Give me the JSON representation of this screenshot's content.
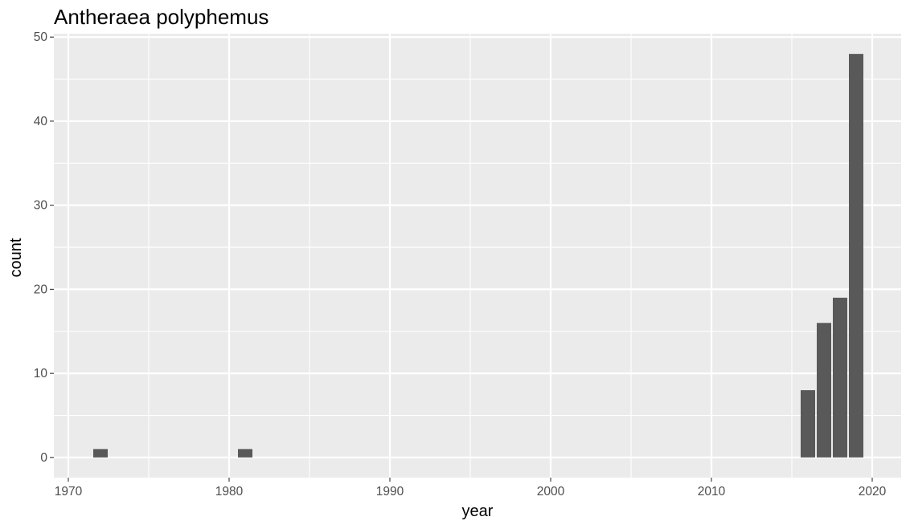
{
  "chart_data": {
    "type": "bar",
    "title": "Antheraea polyphemus",
    "xlabel": "year",
    "ylabel": "count",
    "x": [
      1972,
      1981,
      2016,
      2017,
      2018,
      2019
    ],
    "values": [
      1,
      1,
      8,
      16,
      19,
      48
    ],
    "xlim": [
      1969.1,
      2021.8
    ],
    "ylim": [
      -2.4,
      50.4
    ],
    "x_ticks": [
      1970,
      1980,
      1990,
      2000,
      2010,
      2020
    ],
    "y_ticks": [
      0,
      10,
      20,
      30,
      40,
      50
    ],
    "x_tick_labels": [
      "1970",
      "1980",
      "1990",
      "2000",
      "2010",
      "2020"
    ],
    "y_tick_labels": [
      "0",
      "10",
      "20",
      "30",
      "40",
      "50"
    ],
    "grid": true,
    "colors": {
      "panel_background": "#ebebeb",
      "grid": "#ffffff",
      "bar": "#595959",
      "tick_label": "#4d4d4d",
      "tick_mark": "#333333"
    }
  }
}
